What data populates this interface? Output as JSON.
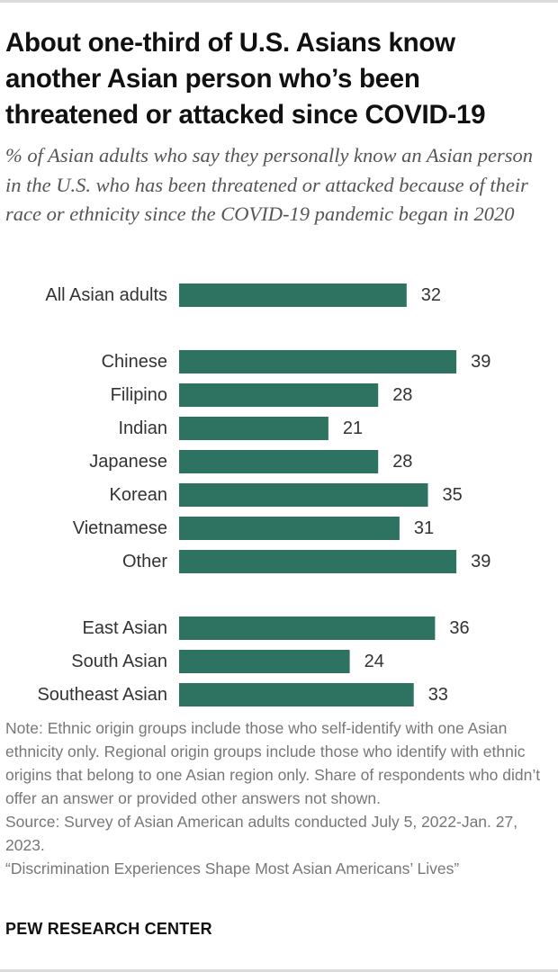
{
  "header": {
    "title": "About one-third of U.S. Asians know another Asian person who’s been threatened or attacked since COVID-19",
    "subtitle": "% of Asian adults who say they personally know an Asian person in the U.S. who has been threatened or attacked because of their race or ethnicity since the COVID-19 pandemic began in 2020"
  },
  "chart_data": {
    "type": "bar",
    "orientation": "horizontal",
    "title": "About one-third of U.S. Asians know another Asian person who’s been threatened or attacked since COVID-19",
    "subtitle": "% of Asian adults who say they personally know an Asian person in the U.S. who has been threatened or attacked because of their race or ethnicity since the COVID-19 pandemic began in 2020",
    "xlabel": "",
    "ylabel": "",
    "grid": false,
    "bar_color": "#2e7262",
    "groups": [
      {
        "categories": [
          "All Asian adults"
        ],
        "values": [
          32
        ]
      },
      {
        "categories": [
          "Chinese",
          "Filipino",
          "Indian",
          "Japanese",
          "Korean",
          "Vietnamese",
          "Other"
        ],
        "values": [
          39,
          28,
          21,
          28,
          35,
          31,
          39
        ]
      },
      {
        "categories": [
          "East Asian",
          "South Asian",
          "Southeast Asian"
        ],
        "values": [
          36,
          24,
          33
        ]
      }
    ]
  },
  "footer": {
    "note": "Note: Ethnic origin groups include those who self-identify with one Asian ethnicity only. Regional origin groups include those who identify with ethnic origins that belong to one Asian region only. Share of respondents who didn’t offer an answer or provided other answers not shown.",
    "source": "Source: Survey of Asian American adults conducted July 5, 2022-Jan. 27, 2023.",
    "report": "“Discrimination Experiences Shape Most Asian Americans’ Lives”",
    "organization": "PEW RESEARCH CENTER"
  }
}
